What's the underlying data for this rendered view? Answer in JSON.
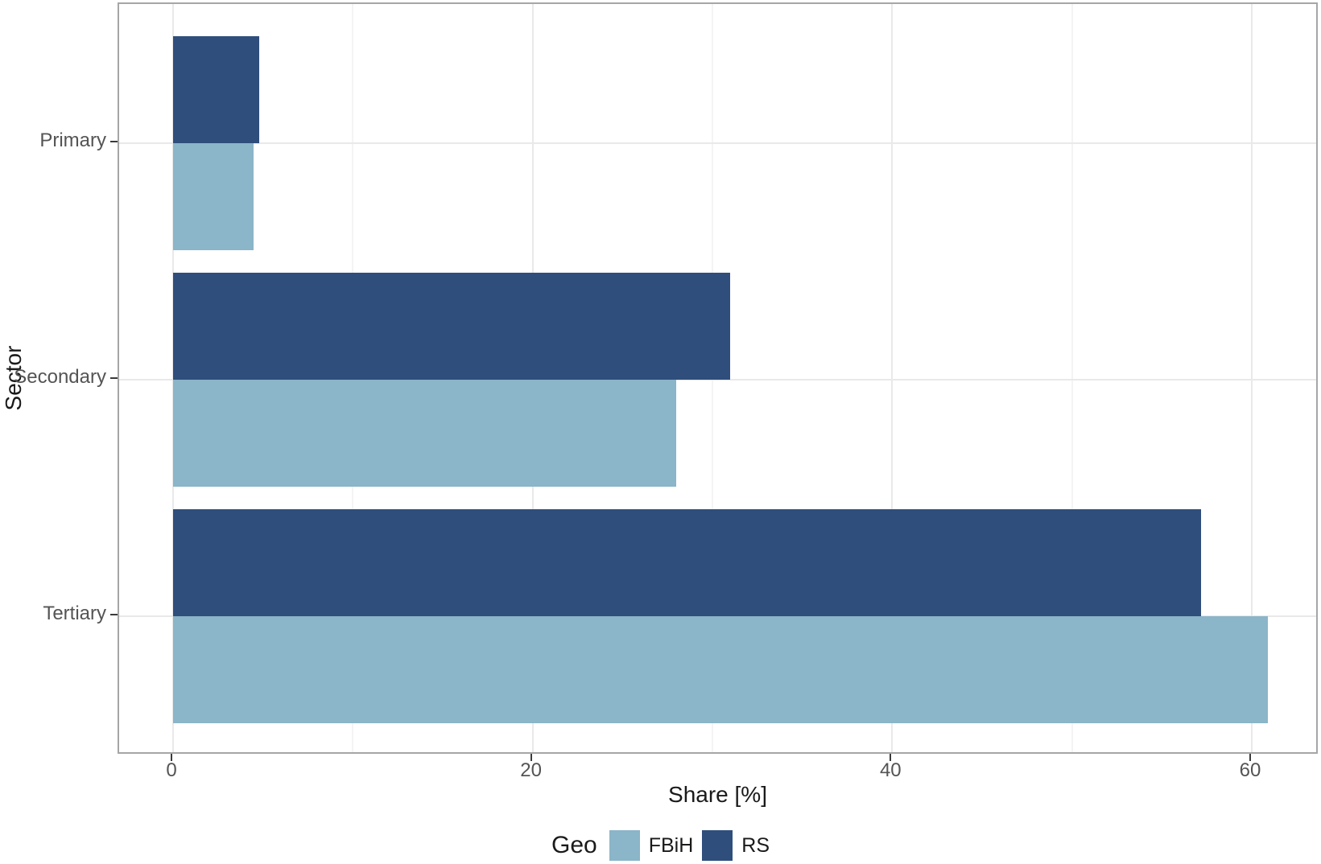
{
  "chart_data": {
    "type": "bar",
    "orientation": "horizontal",
    "title": "",
    "xlabel": "Share [%]",
    "ylabel": "Sector",
    "categories": [
      "Primary",
      "Secondary",
      "Tertiary"
    ],
    "series": [
      {
        "name": "FBiH",
        "color": "#8bb5c8",
        "values": [
          4.5,
          28.0,
          60.9
        ]
      },
      {
        "name": "RS",
        "color": "#2f4e7c",
        "values": [
          4.8,
          31.0,
          57.2
        ]
      }
    ],
    "x_ticks": [
      0,
      20,
      40,
      60
    ],
    "x_tick_labels": [
      "0",
      "20",
      "40",
      "60"
    ],
    "x_minor_ticks": [
      10,
      30,
      50
    ],
    "xlim": [
      -3.1,
      63.8
    ],
    "grid": true,
    "legend": {
      "title": "Geo",
      "position": "bottom",
      "entries": [
        "FBiH",
        "RS"
      ]
    },
    "colors": {
      "panel_border": "#a6a6a6",
      "grid_major": "#e9e9e9",
      "grid_minor": "#f4f4f4",
      "axis_text": "#545454",
      "axis_title": "#1a1a1a"
    }
  }
}
